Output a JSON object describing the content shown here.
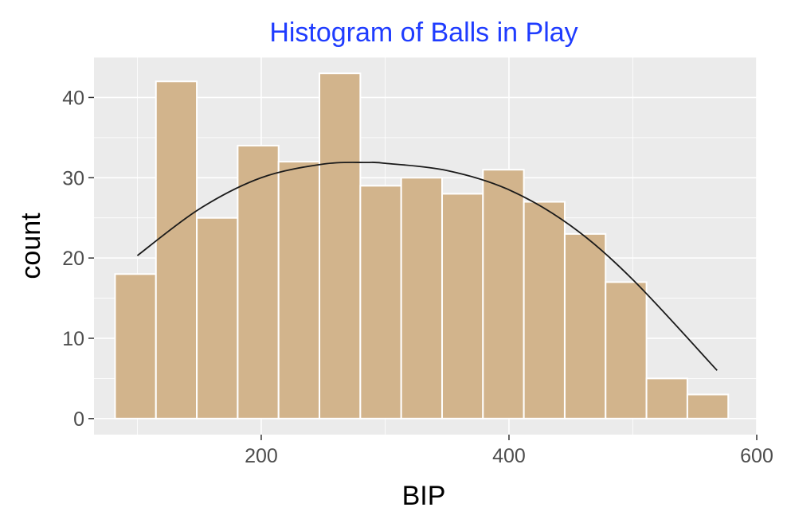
{
  "chart_data": {
    "type": "bar",
    "title": "Histogram of Balls in Play",
    "xlabel": "BIP",
    "ylabel": "count",
    "x_ticks": [
      200,
      400,
      600
    ],
    "y_ticks": [
      0,
      10,
      20,
      30,
      40
    ],
    "xlim": [
      65,
      600
    ],
    "ylim": [
      -2,
      45
    ],
    "bin_width": 33,
    "bin_starts": [
      82,
      115,
      148,
      181,
      214,
      247,
      280,
      313,
      346,
      379,
      412,
      445,
      478,
      511,
      544
    ],
    "values": [
      18,
      42,
      25,
      34,
      32,
      43,
      29,
      30,
      28,
      31,
      27,
      23,
      17,
      5,
      3
    ],
    "fit_curve": {
      "type": "quadratic",
      "x_range": [
        100,
        568
      ],
      "points": [
        [
          100,
          20.3
        ],
        [
          150,
          26.1
        ],
        [
          200,
          30.0
        ],
        [
          250,
          31.7
        ],
        [
          285,
          31.9
        ],
        [
          300,
          31.8
        ],
        [
          350,
          30.9
        ],
        [
          400,
          28.5
        ],
        [
          450,
          24.0
        ],
        [
          500,
          17.3
        ],
        [
          568,
          6.0
        ]
      ]
    },
    "colors": {
      "bar_fill": "#d2b48c",
      "bar_stroke": "#ffffff",
      "panel_bg": "#ebebeb",
      "title": "#1f3cff",
      "curve": "#1a1a1a"
    }
  }
}
